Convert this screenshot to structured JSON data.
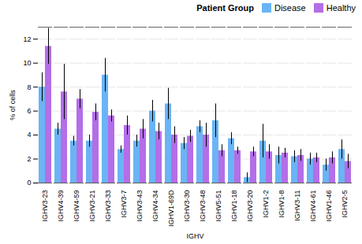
{
  "chart_data": {
    "type": "bar",
    "categories": [
      "IGHV3-23",
      "IGHV4-39",
      "IGHV4-59",
      "IGHV3-21",
      "IGHV3-33",
      "IGHV3-7",
      "IGHV3-43",
      "IGHV4-34",
      "IGHV1-69D",
      "IGHV3-30",
      "IGHV3-48",
      "IGHV5-51",
      "IGHV1-18",
      "IGHV3-20",
      "IGHV1-2",
      "IGHV1-8",
      "IGHV3-11",
      "IGHV4-61",
      "IGHV1-46",
      "IGHV2-5"
    ],
    "series": [
      {
        "name": "Disease",
        "color": "#6ab4f5",
        "values": [
          8.0,
          4.5,
          3.5,
          3.5,
          9.0,
          2.8,
          3.5,
          6.0,
          6.6,
          3.3,
          4.7,
          5.2,
          3.7,
          0.45,
          3.5,
          2.3,
          2.2,
          2.0,
          1.5,
          2.8
        ],
        "errors": [
          1.2,
          0.5,
          0.4,
          0.5,
          1.4,
          0.3,
          0.5,
          0.9,
          1.3,
          0.5,
          0.5,
          1.4,
          0.5,
          0.4,
          1.4,
          0.7,
          0.5,
          0.5,
          0.5,
          0.8
        ]
      },
      {
        "name": "Healthy",
        "color": "#b36ee8",
        "values": [
          11.4,
          7.6,
          7.0,
          5.9,
          5.6,
          4.8,
          4.5,
          4.3,
          4.0,
          3.9,
          4.0,
          2.7,
          2.7,
          2.6,
          2.6,
          2.5,
          2.3,
          2.1,
          2.1,
          1.8
        ],
        "errors": [
          1.5,
          2.3,
          0.8,
          0.7,
          0.5,
          0.8,
          0.8,
          0.7,
          0.7,
          0.5,
          1.0,
          0.5,
          0.3,
          0.4,
          0.6,
          0.4,
          0.5,
          0.4,
          0.5,
          0.6
        ]
      }
    ],
    "xlabel": "IGHV",
    "ylabel": "% of cells",
    "ylim": [
      0,
      13
    ],
    "yticks": [
      0,
      2,
      4,
      6,
      8,
      10,
      12
    ],
    "grid": true,
    "legend": "upper right",
    "legend_title": "Patient Group"
  }
}
